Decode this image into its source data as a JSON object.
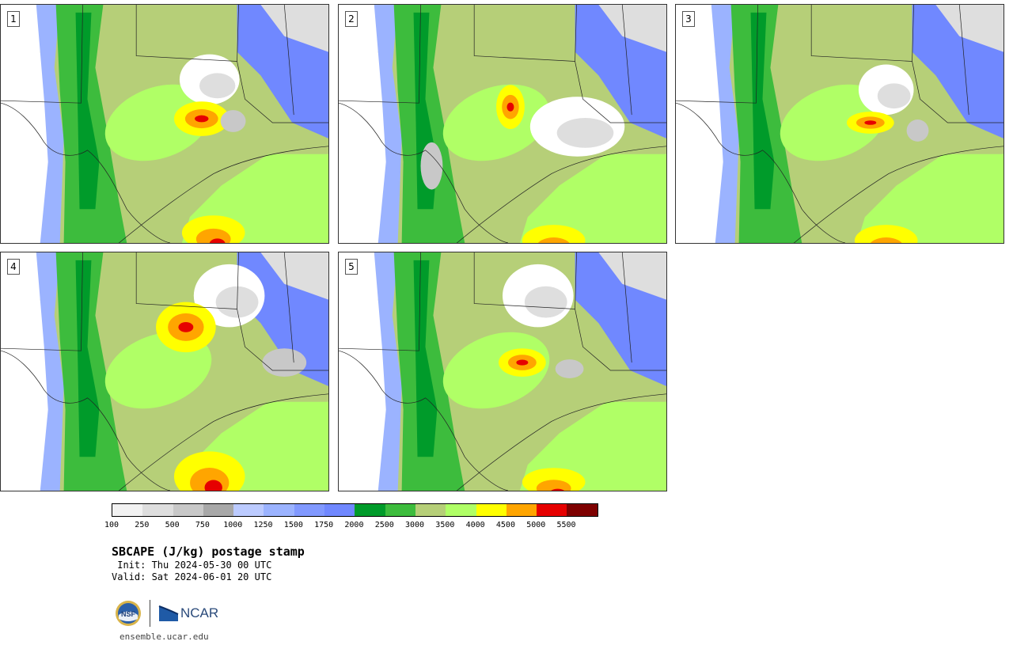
{
  "panels": [
    {
      "label": "1"
    },
    {
      "label": "2"
    },
    {
      "label": "3"
    },
    {
      "label": "4"
    },
    {
      "label": "5"
    }
  ],
  "colorbar": {
    "colors": [
      "#f2f2f2",
      "#dedede",
      "#c8c8c8",
      "#a8a8a8",
      "#bccbff",
      "#9bb3ff",
      "#8199ff",
      "#7088ff",
      "#009b2a",
      "#3dbc3d",
      "#b6cf78",
      "#b0ff66",
      "#ffff00",
      "#ffa500",
      "#e60000",
      "#7e0000"
    ],
    "ticks": [
      "100",
      "250",
      "500",
      "750",
      "1000",
      "1250",
      "1500",
      "1750",
      "2000",
      "2500",
      "3000",
      "3500",
      "4000",
      "4500",
      "5000",
      "5500"
    ]
  },
  "header": {
    "title": "SBCAPE (J/kg) postage stamp",
    "init": " Init: Thu 2024-05-30 00 UTC",
    "valid": "Valid: Sat 2024-06-01 20 UTC"
  },
  "logos": {
    "nsf_text": "NSF",
    "ncar_text": "NCAR"
  },
  "footer": {
    "site": "ensemble.ucar.edu"
  },
  "map_colors": {
    "land_base": "#b6cf78",
    "white": "#ffffff",
    "light_gray": "#dedede",
    "gray": "#c8c8c8",
    "blue_light": "#9bb3ff",
    "blue": "#7088ff",
    "green_dark": "#009b2a",
    "green": "#3dbc3d",
    "lime": "#b0ff66",
    "yellow": "#ffff00",
    "orange": "#ffa500",
    "red": "#e60000",
    "dark_red": "#7e0000"
  }
}
